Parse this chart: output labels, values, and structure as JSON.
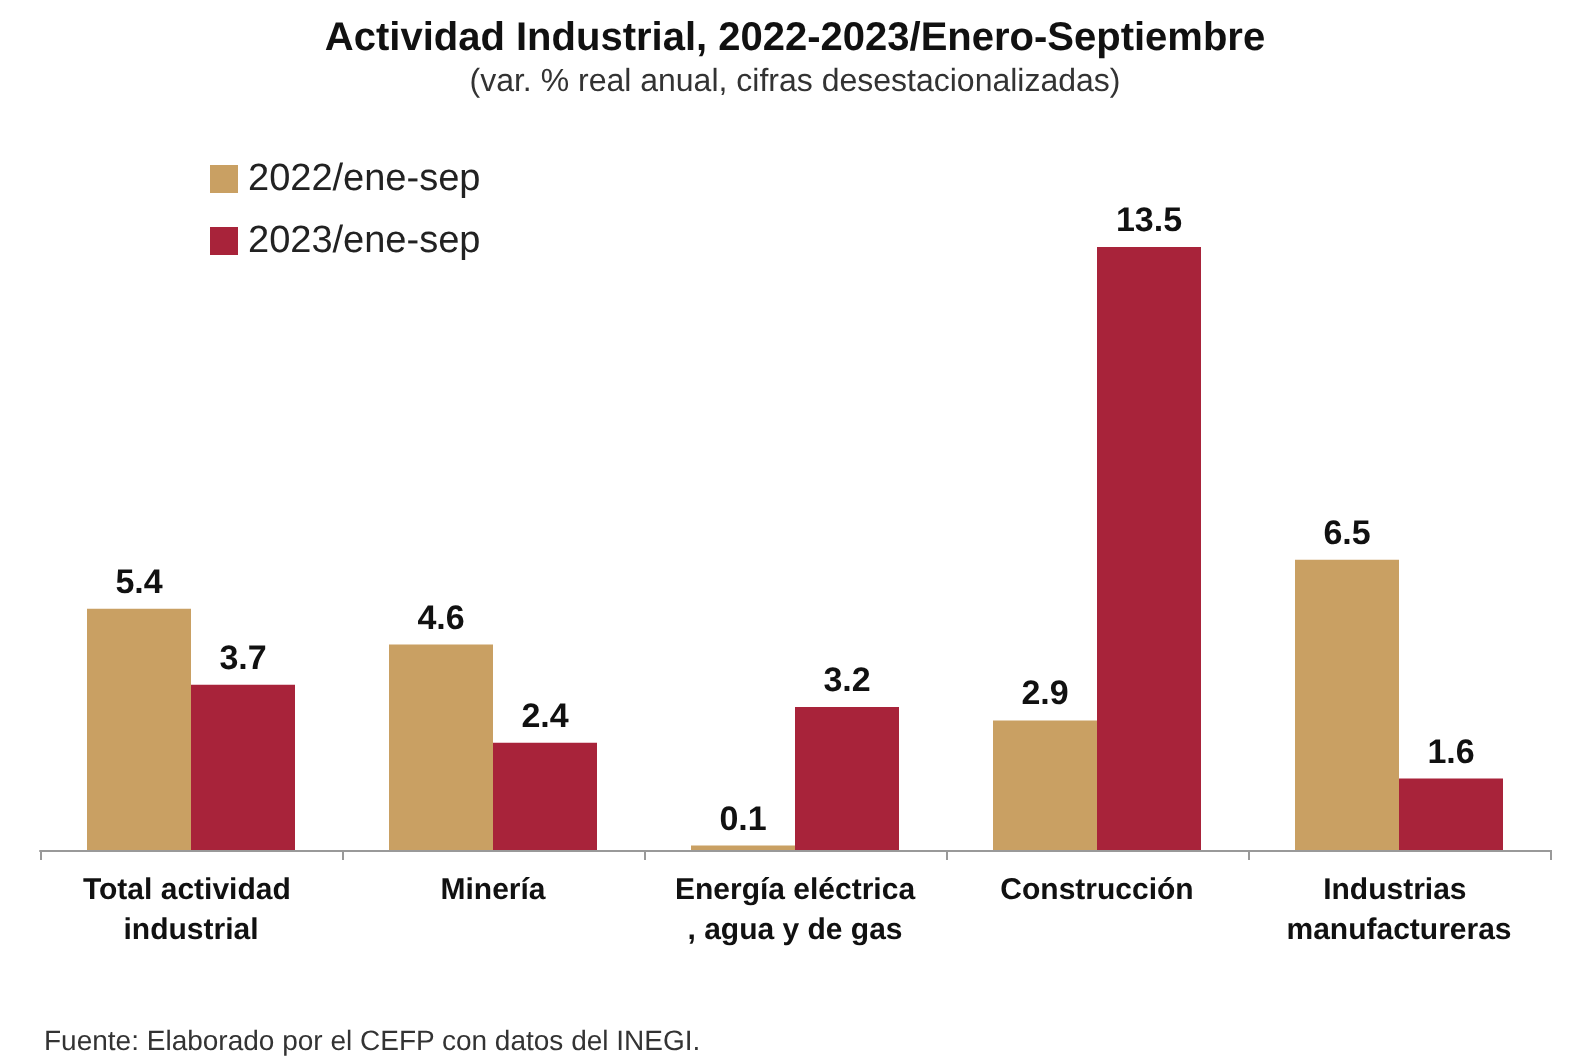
{
  "chart_data": {
    "type": "bar",
    "title": "Actividad Industrial, 2022-2023/Enero-Septiembre",
    "subtitle": "(var. % real anual, cifras desestacionalizadas)",
    "categories": [
      "Total actividad industrial",
      "Minería",
      "Energía eléctrica, agua y de gas",
      "Construcción",
      "Industrias manufactureras"
    ],
    "series": [
      {
        "name": "2022/ene-sep",
        "color": "#c9a063",
        "values": [
          5.4,
          4.6,
          0.1,
          2.9,
          6.5
        ]
      },
      {
        "name": "2023/ene-sep",
        "color": "#a8233a",
        "values": [
          3.7,
          2.4,
          3.2,
          13.5,
          1.6
        ]
      }
    ],
    "data_labels": true,
    "legend": "top left",
    "grid": false,
    "annotations": [
      "Fuente: Elaborado por el CEFP con datos del INEGI."
    ]
  }
}
